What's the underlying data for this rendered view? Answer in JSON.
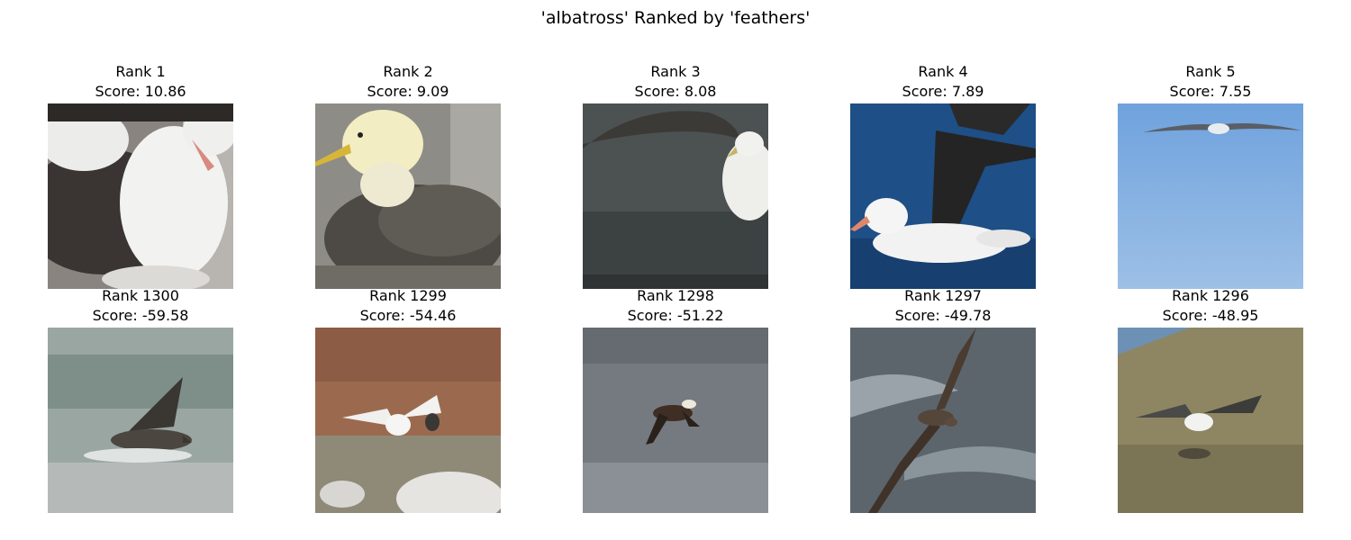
{
  "figure": {
    "title": "'albatross' Ranked by 'feathers'"
  },
  "panels": [
    {
      "rank": "Rank 1",
      "score": "Score: 10.86",
      "scene": "close-up-albatross-pair"
    },
    {
      "rank": "Rank 2",
      "score": "Score: 9.09",
      "scene": "waved-albatross-sitting"
    },
    {
      "rank": "Rank 3",
      "score": "Score: 8.08",
      "scene": "albatross-on-water-wing-raised"
    },
    {
      "rank": "Rank 4",
      "score": "Score: 7.89",
      "scene": "black-browed-albatross-on-blue-water"
    },
    {
      "rank": "Rank 5",
      "score": "Score: 7.55",
      "scene": "albatross-gliding-blue-sky"
    },
    {
      "rank": "Rank 1300",
      "score": "Score: -59.58",
      "scene": "dark-albatross-splashing"
    },
    {
      "rank": "Rank 1299",
      "score": "Score: -54.46",
      "scene": "albatross-on-rocky-ground"
    },
    {
      "rank": "Rank 1298",
      "score": "Score: -51.22",
      "scene": "albatross-skimming-waves"
    },
    {
      "rank": "Rank 1297",
      "score": "Score: -49.78",
      "scene": "dark-albatross-over-ocean"
    },
    {
      "rank": "Rank 1296",
      "score": "Score: -48.95",
      "scene": "albatross-landing-on-grass"
    }
  ]
}
